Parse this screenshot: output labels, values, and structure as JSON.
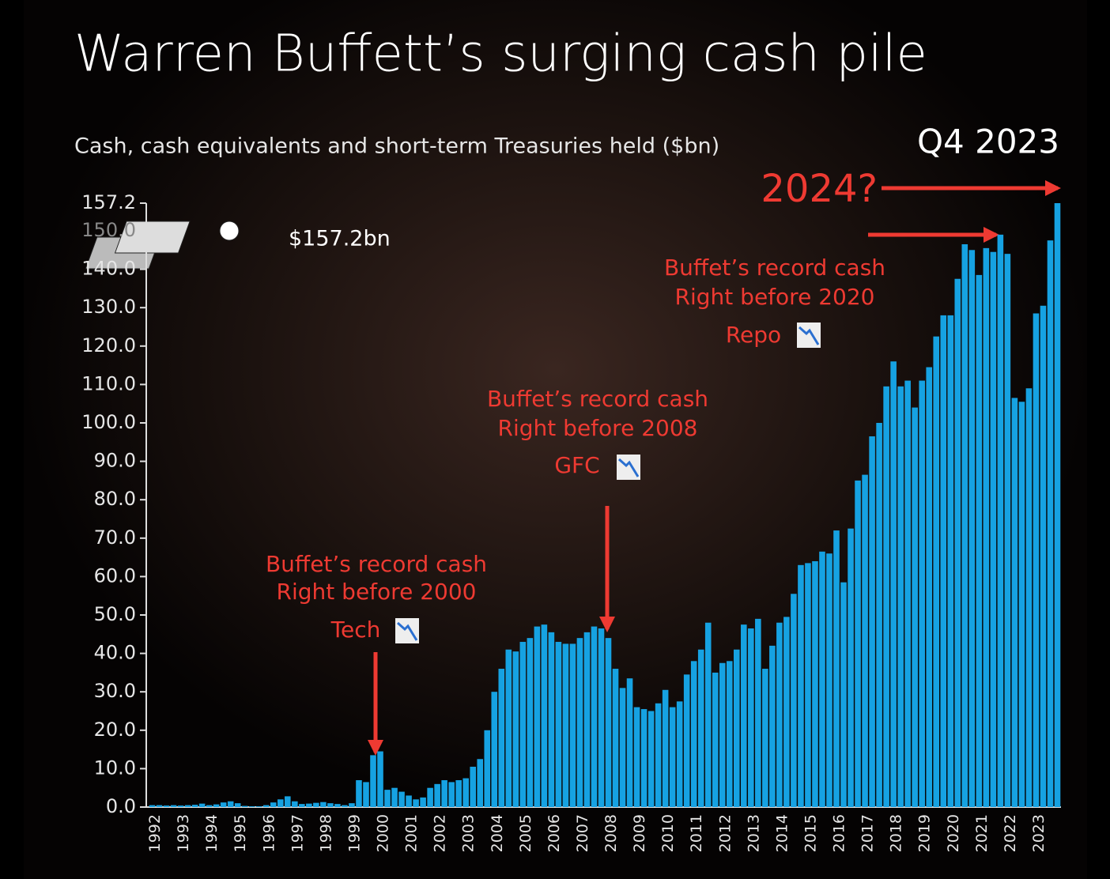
{
  "chart_data": {
    "type": "bar",
    "title": "Warren Buffett’s surging cash pile",
    "subtitle": "Cash, cash equivalents and short-term Treasuries held ($bn)",
    "period": "Q4 2023",
    "color": "#16a2e2",
    "annotations": [
      "$157.2bn",
      "2024?",
      "Buffet’s record cash",
      "Right before 2000",
      "Tech",
      "Buffet’s record cash",
      "Right before 2008",
      "GFC",
      "Buffet’s record cash",
      "Right before 2020",
      "Repo"
    ],
    "categories": [
      "1992",
      null,
      null,
      null,
      "1993",
      null,
      null,
      null,
      "1994",
      null,
      null,
      null,
      "1995",
      null,
      null,
      null,
      "1996",
      null,
      null,
      null,
      "1997",
      null,
      null,
      null,
      "1998",
      null,
      null,
      null,
      "1999",
      null,
      null,
      null,
      "2000",
      null,
      null,
      null,
      "2001",
      null,
      null,
      null,
      "2002",
      null,
      null,
      null,
      "2003",
      null,
      null,
      null,
      "2004",
      null,
      null,
      null,
      "2005",
      null,
      null,
      null,
      "2006",
      null,
      null,
      null,
      "2007",
      null,
      null,
      null,
      "2008",
      null,
      null,
      null,
      "2009",
      null,
      null,
      null,
      "2010",
      null,
      null,
      null,
      "2011",
      null,
      null,
      null,
      "2012",
      null,
      null,
      null,
      "2013",
      null,
      null,
      null,
      "2014",
      null,
      null,
      null,
      "2015",
      null,
      null,
      null,
      "2016",
      null,
      null,
      null,
      "2017",
      null,
      null,
      null,
      "2018",
      null,
      null,
      null,
      "2019",
      null,
      null,
      null,
      "2020",
      null,
      null,
      null,
      "2021",
      null,
      null,
      null,
      "2022",
      null,
      null,
      null,
      "2023",
      null,
      null,
      null
    ],
    "values": [
      0.5,
      0.5,
      0.4,
      0.5,
      0.4,
      0.5,
      0.6,
      0.9,
      0.5,
      0.7,
      1.2,
      1.5,
      1.0,
      0.3,
      0.2,
      0.2,
      0.5,
      1.2,
      2.0,
      2.8,
      1.5,
      0.8,
      0.9,
      1.1,
      1.3,
      1.0,
      0.8,
      0.5,
      1.0,
      7.0,
      6.5,
      13.5,
      14.5,
      4.5,
      5.0,
      4.0,
      3.0,
      2.0,
      2.5,
      5.0,
      6.0,
      7.0,
      6.5,
      7.0,
      7.5,
      10.5,
      12.5,
      20.0,
      30.0,
      36.0,
      41.0,
      40.5,
      43.0,
      44.0,
      47.0,
      47.5,
      45.5,
      43.0,
      42.5,
      42.5,
      44.0,
      45.5,
      47.0,
      46.5,
      44.0,
      36.0,
      31.0,
      33.5,
      26.0,
      25.5,
      25.0,
      27.0,
      30.5,
      26.0,
      27.5,
      34.5,
      38.0,
      41.0,
      48.0,
      35.0,
      37.5,
      38.0,
      41.0,
      47.5,
      46.5,
      49.0,
      36.0,
      42.0,
      48.0,
      49.5,
      55.5,
      63.0,
      63.5,
      64.0,
      66.5,
      66.0,
      72.0,
      58.5,
      72.5,
      85.0,
      86.5,
      96.5,
      100.0,
      109.5,
      116.0,
      109.5,
      111.0,
      104.0,
      111.0,
      114.5,
      122.5,
      128.0,
      128.0,
      137.5,
      146.5,
      145.0,
      138.5,
      145.5,
      144.5,
      149.0,
      144.0,
      106.5,
      105.5,
      109.0,
      128.5,
      130.5,
      147.5,
      157.2
    ],
    "ylim": [
      0,
      157.2
    ],
    "yticks": [
      {
        "value": 0,
        "label": "0.0"
      },
      {
        "value": 10,
        "label": "10.0"
      },
      {
        "value": 20,
        "label": "20.0"
      },
      {
        "value": 30,
        "label": "30.0"
      },
      {
        "value": 40,
        "label": "40.0"
      },
      {
        "value": 50,
        "label": "50.0"
      },
      {
        "value": 60,
        "label": "60.0"
      },
      {
        "value": 70,
        "label": "70.0"
      },
      {
        "value": 80,
        "label": "80.0"
      },
      {
        "value": 90,
        "label": "90.0"
      },
      {
        "value": 100,
        "label": "100.0"
      },
      {
        "value": 110,
        "label": "110.0"
      },
      {
        "value": 120,
        "label": "120.0"
      },
      {
        "value": 130,
        "label": "130.0"
      },
      {
        "value": 140,
        "label": "140.0"
      },
      {
        "value": 150,
        "label": "150.0"
      },
      157.2
    ]
  }
}
